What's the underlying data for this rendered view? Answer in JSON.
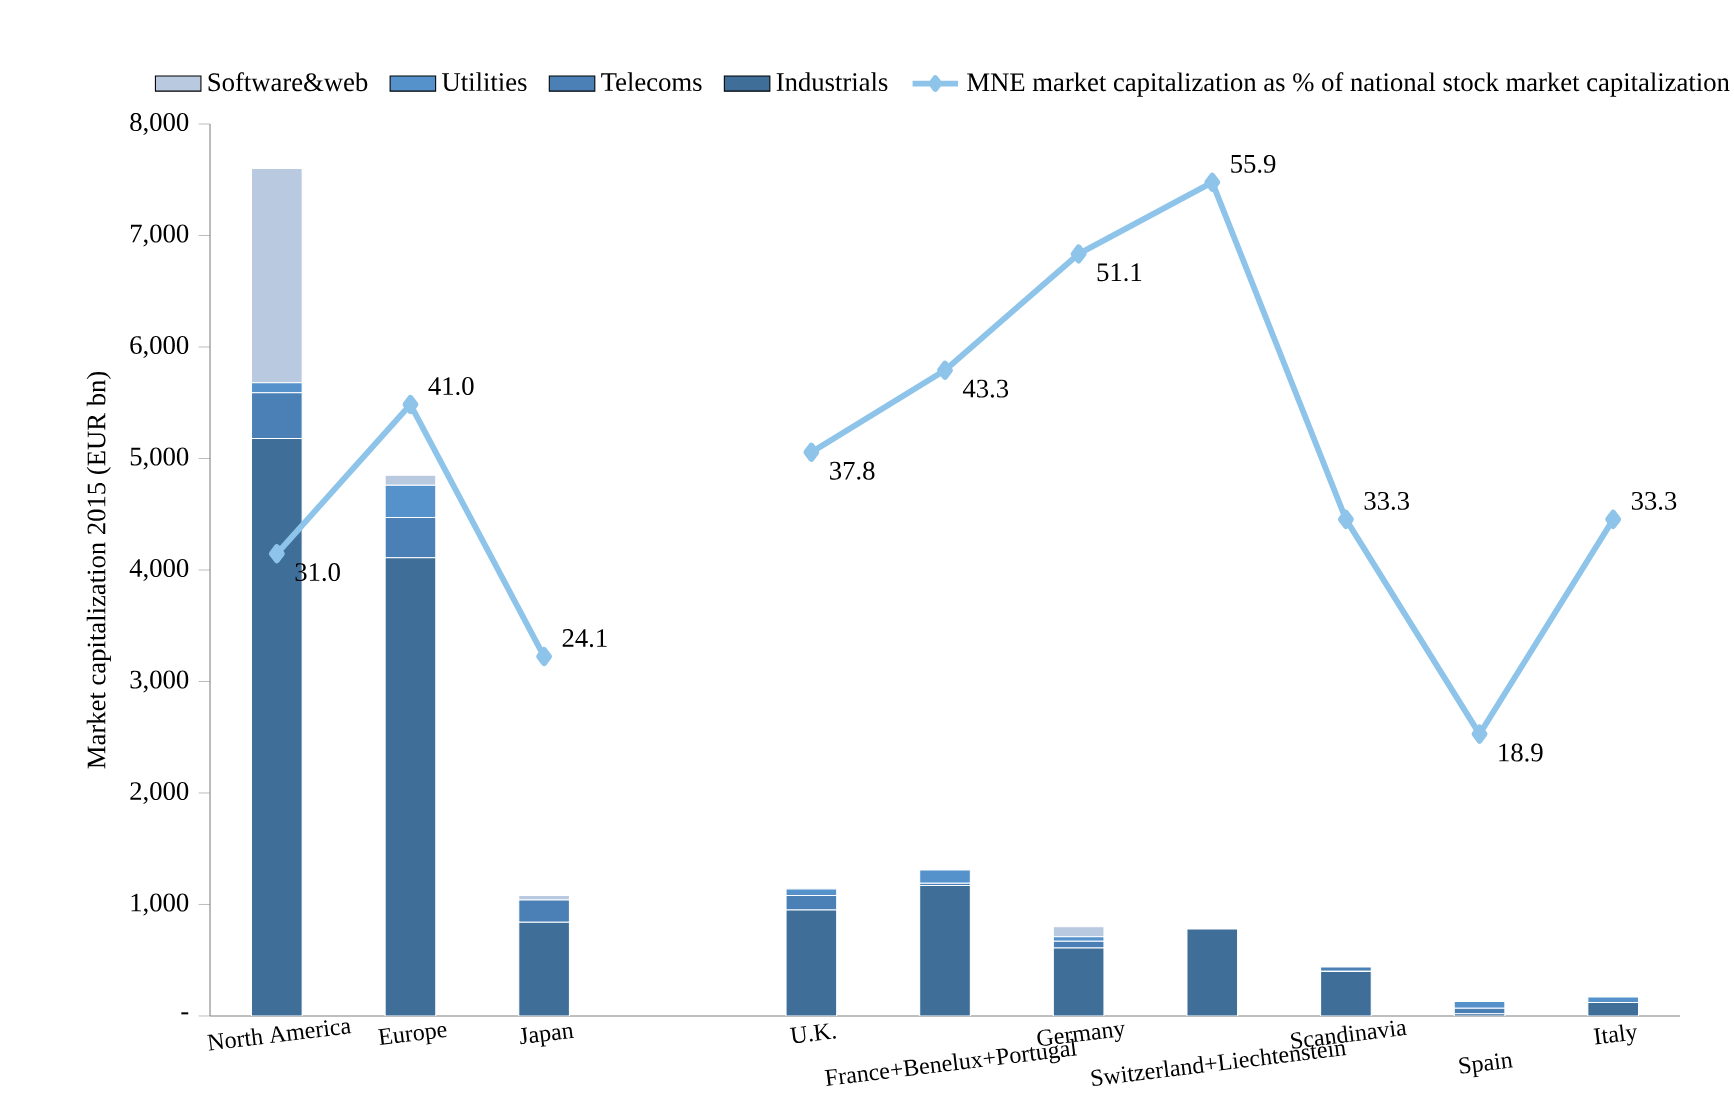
{
  "chart_data": {
    "type": "bar",
    "stacked": true,
    "ylabel": "Market capitalization 2015 (EUR bn)",
    "categories": [
      "North America",
      "Europe",
      "Japan",
      null,
      "U.K.",
      "France+Benelux+Portugal",
      "Germany",
      "Switzerland+Liechtenstein",
      "Scandinavia",
      "Spain",
      "Italy"
    ],
    "series": [
      {
        "name": "Industrials",
        "color": "#3f6f99",
        "values": [
          5180,
          4110,
          840,
          null,
          950,
          1170,
          610,
          780,
          400,
          20,
          120
        ]
      },
      {
        "name": "Telecoms",
        "color": "#4a80b6",
        "values": [
          410,
          360,
          200,
          null,
          130,
          20,
          60,
          0,
          40,
          50,
          0
        ]
      },
      {
        "name": "Utilities",
        "color": "#5592cb",
        "values": [
          90,
          290,
          0,
          null,
          60,
          120,
          40,
          0,
          0,
          60,
          50
        ]
      },
      {
        "name": "Software&web",
        "color": "#b8c9e0",
        "values": [
          1920,
          90,
          40,
          null,
          0,
          0,
          90,
          0,
          0,
          0,
          0
        ]
      },
      {
        "name": "MNE market capitalization as % of national stock market capitalization",
        "type": "line",
        "axis": "y2",
        "color": "#8ec4ea",
        "marker": "diamond",
        "values": [
          31.0,
          41.0,
          24.1,
          null,
          37.8,
          43.3,
          51.1,
          55.9,
          33.3,
          18.9,
          33.3
        ],
        "value_labels": [
          "31.0",
          "41.0",
          "24.1",
          null,
          "37.8",
          "43.3",
          "51.1",
          "55.9",
          "33.3",
          "18.9",
          "33.3"
        ]
      }
    ],
    "ylim": [
      0,
      8000
    ],
    "yticks": [
      {
        "value": 0,
        "label": "-"
      },
      {
        "value": 1000,
        "label": "1,000"
      },
      {
        "value": 2000,
        "label": "2,000"
      },
      {
        "value": 3000,
        "label": "3,000"
      },
      {
        "value": 4000,
        "label": "4,000"
      },
      {
        "value": 5000,
        "label": "5,000"
      },
      {
        "value": 6000,
        "label": "6,000"
      },
      {
        "value": 7000,
        "label": "7,000"
      },
      {
        "value": 8000,
        "label": "8,000"
      }
    ],
    "legend": "top",
    "grid": false
  }
}
